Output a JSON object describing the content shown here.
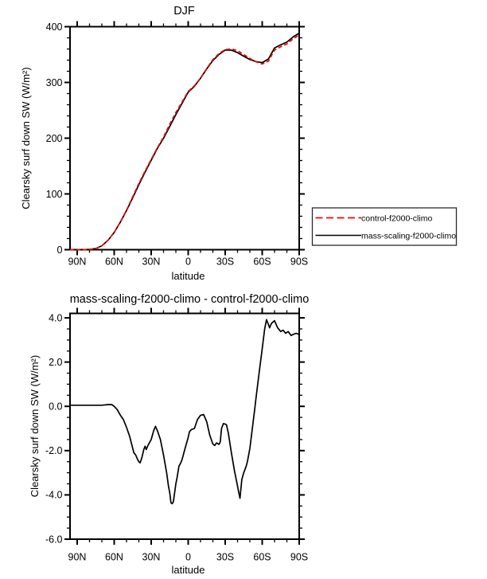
{
  "figure": {
    "background": "#ffffff",
    "frame_color": "#000000"
  },
  "legend": {
    "border_color": "#2b2b2b",
    "entries": [
      {
        "label": "control-f2000-climo",
        "color": "#ff0000",
        "style": "dashed"
      },
      {
        "label": "mass-scaling-f2000-climo",
        "color": "#000000",
        "style": "solid"
      }
    ]
  },
  "chart_data": [
    {
      "type": "line",
      "title": "DJF",
      "xlabel": "latitude",
      "ylabel": "Clearsky surf down SW (W/m²)",
      "ylim": [
        0,
        400
      ],
      "grid": false,
      "legend_position": "outside-right",
      "x_ticks": {
        "lats": [
          90,
          60,
          30,
          0,
          -30,
          -60,
          -90
        ],
        "labels": [
          "90N",
          "60N",
          "30N",
          "0",
          "30S",
          "60S",
          "90S"
        ],
        "minor_step_deg": 10
      },
      "y_ticks": {
        "values": [
          0,
          100,
          200,
          300,
          400
        ],
        "labels": [
          "0",
          "100",
          "200",
          "300",
          "400"
        ],
        "minor_step": 20
      },
      "x": [
        90,
        85,
        80,
        75,
        70,
        65,
        60,
        55,
        50,
        45,
        40,
        35,
        30,
        25,
        20,
        15,
        10,
        5,
        0,
        -5,
        -10,
        -15,
        -20,
        -25,
        -30,
        -35,
        -40,
        -45,
        -50,
        -55,
        -60,
        -65,
        -70,
        -75,
        -80,
        -85,
        -90
      ],
      "series": [
        {
          "name": "control-f2000-climo",
          "color": "#ff0000",
          "line_style": "dashed",
          "values": [
            0,
            0,
            0.5,
            2,
            7,
            17,
            31,
            50,
            71,
            95,
            119,
            141,
            162,
            183,
            202,
            225,
            246,
            265,
            284,
            294,
            308,
            325,
            341,
            352,
            359,
            360,
            357,
            350,
            343,
            337,
            333,
            338.3,
            358,
            364,
            369,
            378.2,
            385.2
          ]
        },
        {
          "name": "mass-scaling-f2000-climo",
          "color": "#000000",
          "line_style": "solid",
          "values": [
            0,
            0,
            0.5,
            2,
            7,
            17,
            31,
            49.6,
            70.1,
            93.1,
            116.5,
            139.2,
            160.5,
            181.9,
            199.8,
            221.1,
            242.5,
            262.6,
            282.6,
            293,
            307.6,
            324.3,
            339.3,
            350.3,
            358.2,
            357.9,
            353.4,
            347,
            341.1,
            337.4,
            335.6,
            342,
            361.9,
            367.4,
            372.3,
            381.5,
            388.5
          ]
        }
      ]
    },
    {
      "type": "line",
      "title": "mass-scaling-f2000-climo - control-f2000-climo",
      "xlabel": "latitude",
      "ylabel": "Clearsky surf down SW (W/m²)",
      "ylim": [
        -6,
        4.2
      ],
      "grid": false,
      "x_ticks": {
        "lats": [
          90,
          60,
          30,
          0,
          -30,
          -60,
          -90
        ],
        "labels": [
          "90N",
          "60N",
          "30N",
          "0",
          "30S",
          "60S",
          "90S"
        ],
        "minor_step_deg": 10
      },
      "y_ticks": {
        "values": [
          4,
          2,
          0,
          -2,
          -4,
          -6
        ],
        "labels": [
          "4.0",
          "2.0",
          "0.0",
          "-2.0",
          "-4.0",
          "-6.0"
        ],
        "minor_step": 0.5
      },
      "x": [
        90,
        85,
        80,
        75,
        70,
        65,
        62,
        60,
        57.5,
        55,
        52.5,
        50,
        47.5,
        45,
        44,
        42.5,
        41,
        40,
        39,
        37.5,
        36,
        35,
        34,
        32.5,
        30,
        28,
        26.5,
        25,
        22.5,
        20,
        17.5,
        16,
        15,
        14,
        13,
        12,
        10,
        9,
        7.5,
        6,
        5,
        2.5,
        0,
        -1,
        -2.5,
        -5,
        -7.5,
        -10,
        -12.5,
        -15,
        -17.5,
        -20,
        -21.5,
        -23,
        -25,
        -26,
        -27,
        -28.5,
        -30,
        -31,
        -32.5,
        -35,
        -37.5,
        -40,
        -41,
        -42,
        -43.5,
        -45,
        -47,
        -48,
        -50,
        -52,
        -54,
        -55,
        -57.5,
        -60,
        -62,
        -63.5,
        -65,
        -66,
        -67.5,
        -70,
        -72.5,
        -75,
        -77,
        -79,
        -81,
        -83.5,
        -85,
        -87.5,
        -90
      ],
      "series": [
        {
          "name": "mass-scaling-f2000-climo - control-f2000-climo",
          "color": "#000000",
          "line_style": "solid",
          "values": [
            0.05,
            0.05,
            0.05,
            0.05,
            0.05,
            0.08,
            0.08,
            0,
            -0.15,
            -0.4,
            -0.6,
            -0.95,
            -1.35,
            -1.9,
            -2.1,
            -2.2,
            -2.4,
            -2.5,
            -2.55,
            -2.3,
            -1.95,
            -1.8,
            -1.95,
            -1.75,
            -1.5,
            -1.1,
            -0.9,
            -1.1,
            -1.5,
            -2.2,
            -3.0,
            -3.6,
            -3.9,
            -4.35,
            -4.4,
            -4.3,
            -3.5,
            -3.2,
            -2.7,
            -2.55,
            -2.4,
            -1.9,
            -1.4,
            -1.15,
            -1.05,
            -1.0,
            -0.6,
            -0.4,
            -0.37,
            -0.7,
            -1.3,
            -1.7,
            -1.77,
            -1.65,
            -1.72,
            -1.6,
            -1.0,
            -0.78,
            -0.8,
            -0.83,
            -1.2,
            -2.1,
            -2.9,
            -3.6,
            -3.9,
            -4.15,
            -3.3,
            -3.0,
            -2.7,
            -2.5,
            -1.9,
            -1.0,
            -0.1,
            0.4,
            1.5,
            2.6,
            3.5,
            3.92,
            3.7,
            3.55,
            3.75,
            3.87,
            3.55,
            3.38,
            3.44,
            3.3,
            3.38,
            3.2,
            3.25,
            3.3,
            3.25
          ]
        }
      ]
    }
  ]
}
